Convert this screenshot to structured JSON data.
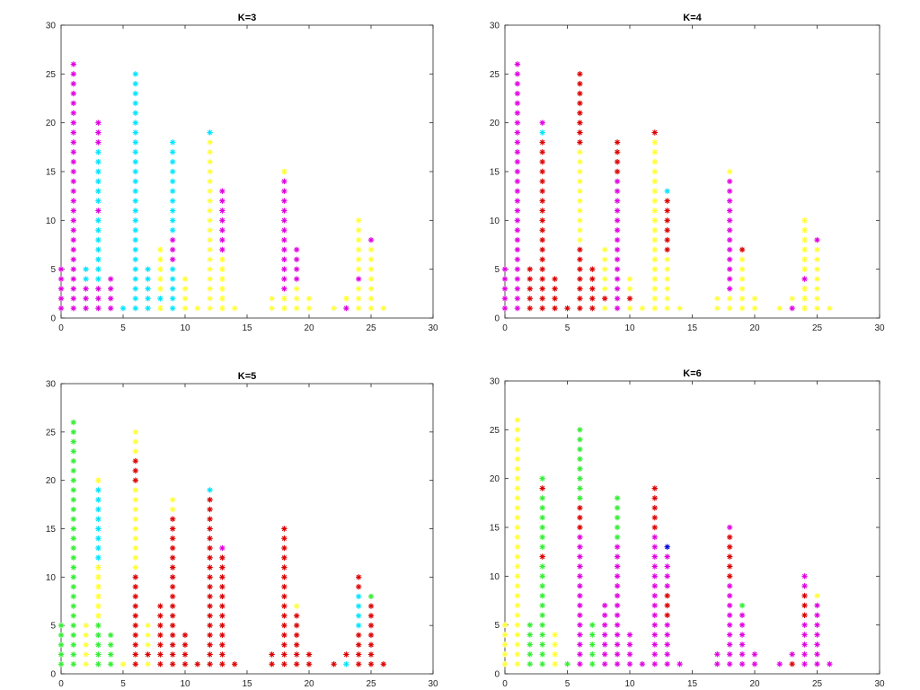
{
  "chart_data": [
    {
      "type": "scatter",
      "title": "K=3",
      "xlim": [
        0,
        30
      ],
      "ylim": [
        0,
        30
      ],
      "xticks": [
        0,
        5,
        10,
        15,
        20,
        25,
        30
      ],
      "yticks": [
        0,
        5,
        10,
        15,
        20,
        25,
        30
      ],
      "xlabel": "",
      "ylabel": "",
      "grid": false,
      "marker": "*",
      "points": [
        {
          "x": 0,
          "y": 1,
          "c": "magenta"
        },
        {
          "x": 0,
          "y": 2,
          "c": "magenta"
        },
        {
          "x": 0,
          "y": 3,
          "c": "magenta"
        },
        {
          "x": 0,
          "y": 4,
          "c": "magenta"
        },
        {
          "x": 0,
          "y": 5,
          "c": "magenta"
        },
        {
          "x": 1,
          "y": [
            1,
            26
          ],
          "c": "magenta"
        },
        {
          "x": 2,
          "y": [
            1,
            3
          ],
          "c": "magenta"
        },
        {
          "x": 2,
          "y": 4,
          "c": "cyan"
        },
        {
          "x": 2,
          "y": 5,
          "c": "cyan"
        },
        {
          "x": 3,
          "y": [
            1,
            3
          ],
          "c": "magenta"
        },
        {
          "x": 3,
          "y": [
            4,
            10
          ],
          "c": "cyan"
        },
        {
          "x": 3,
          "y": 11,
          "c": "magenta"
        },
        {
          "x": 3,
          "y": [
            12,
            17
          ],
          "c": "cyan"
        },
        {
          "x": 3,
          "y": [
            18,
            20
          ],
          "c": "magenta"
        },
        {
          "x": 4,
          "y": [
            1,
            4
          ],
          "c": "magenta"
        },
        {
          "x": 5,
          "y": 1,
          "c": "cyan"
        },
        {
          "x": 6,
          "y": [
            1,
            25
          ],
          "c": "cyan"
        },
        {
          "x": 7,
          "y": [
            1,
            5
          ],
          "c": "cyan"
        },
        {
          "x": 8,
          "y": [
            1,
            7
          ],
          "c": "yellow"
        },
        {
          "x": 8,
          "y": 2,
          "c": "cyan"
        },
        {
          "x": 9,
          "y": [
            1,
            18
          ],
          "c": "cyan"
        },
        {
          "x": 9,
          "y": [
            6,
            8
          ],
          "c": "magenta"
        },
        {
          "x": 10,
          "y": [
            1,
            4
          ],
          "c": "yellow"
        },
        {
          "x": 11,
          "y": 1,
          "c": "yellow"
        },
        {
          "x": 12,
          "y": [
            1,
            19
          ],
          "c": "yellow"
        },
        {
          "x": 12,
          "y": 19,
          "c": "cyan"
        },
        {
          "x": 13,
          "y": [
            1,
            13
          ],
          "c": "yellow"
        },
        {
          "x": 13,
          "y": [
            7,
            13
          ],
          "c": "magenta"
        },
        {
          "x": 14,
          "y": 1,
          "c": "yellow"
        },
        {
          "x": 17,
          "y": [
            1,
            2
          ],
          "c": "yellow"
        },
        {
          "x": 18,
          "y": [
            1,
            15
          ],
          "c": "yellow"
        },
        {
          "x": 18,
          "y": [
            3,
            14
          ],
          "c": "magenta"
        },
        {
          "x": 19,
          "y": [
            1,
            7
          ],
          "c": "yellow"
        },
        {
          "x": 19,
          "y": [
            4,
            7
          ],
          "c": "magenta"
        },
        {
          "x": 20,
          "y": [
            1,
            2
          ],
          "c": "yellow"
        },
        {
          "x": 22,
          "y": 1,
          "c": "yellow"
        },
        {
          "x": 23,
          "y": [
            1,
            2
          ],
          "c": "yellow"
        },
        {
          "x": 23,
          "y": 1,
          "c": "magenta"
        },
        {
          "x": 24,
          "y": [
            1,
            10
          ],
          "c": "yellow"
        },
        {
          "x": 24,
          "y": 4,
          "c": "magenta"
        },
        {
          "x": 25,
          "y": [
            1,
            8
          ],
          "c": "yellow"
        },
        {
          "x": 25,
          "y": 8,
          "c": "magenta"
        },
        {
          "x": 26,
          "y": 1,
          "c": "yellow"
        }
      ]
    },
    {
      "type": "scatter",
      "title": "K=4",
      "xlim": [
        0,
        30
      ],
      "ylim": [
        0,
        30
      ],
      "xticks": [
        0,
        5,
        10,
        15,
        20,
        25,
        30
      ],
      "yticks": [
        0,
        5,
        10,
        15,
        20,
        25,
        30
      ],
      "xlabel": "",
      "ylabel": "",
      "grid": false,
      "marker": "*",
      "points": [
        {
          "x": 0,
          "y": [
            1,
            5
          ],
          "c": "magenta"
        },
        {
          "x": 1,
          "y": [
            1,
            26
          ],
          "c": "magenta"
        },
        {
          "x": 2,
          "y": [
            1,
            5
          ],
          "c": "red"
        },
        {
          "x": 3,
          "y": [
            1,
            20
          ],
          "c": "red"
        },
        {
          "x": 3,
          "y": 19,
          "c": "cyan"
        },
        {
          "x": 3,
          "y": 20,
          "c": "magenta"
        },
        {
          "x": 4,
          "y": [
            1,
            4
          ],
          "c": "red"
        },
        {
          "x": 5,
          "y": 1,
          "c": "red"
        },
        {
          "x": 6,
          "y": [
            1,
            25
          ],
          "c": "red"
        },
        {
          "x": 6,
          "y": [
            8,
            17
          ],
          "c": "yellow"
        },
        {
          "x": 7,
          "y": [
            1,
            5
          ],
          "c": "red"
        },
        {
          "x": 8,
          "y": [
            1,
            7
          ],
          "c": "yellow"
        },
        {
          "x": 8,
          "y": 2,
          "c": "red"
        },
        {
          "x": 9,
          "y": [
            1,
            18
          ],
          "c": "magenta"
        },
        {
          "x": 9,
          "y": [
            15,
            18
          ],
          "c": "red"
        },
        {
          "x": 10,
          "y": [
            1,
            4
          ],
          "c": "yellow"
        },
        {
          "x": 10,
          "y": 2,
          "c": "red"
        },
        {
          "x": 11,
          "y": 1,
          "c": "yellow"
        },
        {
          "x": 12,
          "y": [
            1,
            19
          ],
          "c": "yellow"
        },
        {
          "x": 12,
          "y": 19,
          "c": "red"
        },
        {
          "x": 13,
          "y": [
            1,
            13
          ],
          "c": "yellow"
        },
        {
          "x": 13,
          "y": [
            7,
            12
          ],
          "c": "red"
        },
        {
          "x": 13,
          "y": 13,
          "c": "cyan"
        },
        {
          "x": 14,
          "y": 1,
          "c": "yellow"
        },
        {
          "x": 17,
          "y": [
            1,
            2
          ],
          "c": "yellow"
        },
        {
          "x": 18,
          "y": [
            1,
            15
          ],
          "c": "yellow"
        },
        {
          "x": 18,
          "y": [
            3,
            14
          ],
          "c": "magenta"
        },
        {
          "x": 19,
          "y": [
            1,
            7
          ],
          "c": "yellow"
        },
        {
          "x": 19,
          "y": 7,
          "c": "red"
        },
        {
          "x": 20,
          "y": [
            1,
            2
          ],
          "c": "yellow"
        },
        {
          "x": 22,
          "y": 1,
          "c": "yellow"
        },
        {
          "x": 23,
          "y": [
            1,
            2
          ],
          "c": "yellow"
        },
        {
          "x": 23,
          "y": 1,
          "c": "magenta"
        },
        {
          "x": 24,
          "y": [
            1,
            10
          ],
          "c": "yellow"
        },
        {
          "x": 24,
          "y": 4,
          "c": "magenta"
        },
        {
          "x": 25,
          "y": [
            1,
            8
          ],
          "c": "yellow"
        },
        {
          "x": 25,
          "y": 8,
          "c": "magenta"
        },
        {
          "x": 26,
          "y": 1,
          "c": "yellow"
        }
      ]
    },
    {
      "type": "scatter",
      "title": "K=5",
      "xlim": [
        0,
        30
      ],
      "ylim": [
        0,
        30
      ],
      "xticks": [
        0,
        5,
        10,
        15,
        20,
        25,
        30
      ],
      "yticks": [
        0,
        5,
        10,
        15,
        20,
        25,
        30
      ],
      "xlabel": "",
      "ylabel": "",
      "grid": false,
      "marker": "*",
      "points": [
        {
          "x": 0,
          "y": [
            1,
            5
          ],
          "c": "green"
        },
        {
          "x": 1,
          "y": [
            1,
            26
          ],
          "c": "green"
        },
        {
          "x": 2,
          "y": [
            1,
            5
          ],
          "c": "yellow"
        },
        {
          "x": 3,
          "y": [
            1,
            20
          ],
          "c": "yellow"
        },
        {
          "x": 3,
          "y": [
            12,
            19
          ],
          "c": "cyan"
        },
        {
          "x": 3,
          "y": [
            1,
            5
          ],
          "c": "green"
        },
        {
          "x": 4,
          "y": [
            1,
            4
          ],
          "c": "green"
        },
        {
          "x": 5,
          "y": 1,
          "c": "yellow"
        },
        {
          "x": 6,
          "y": [
            1,
            25
          ],
          "c": "yellow"
        },
        {
          "x": 6,
          "y": [
            1,
            10
          ],
          "c": "red"
        },
        {
          "x": 6,
          "y": [
            20,
            22
          ],
          "c": "red"
        },
        {
          "x": 7,
          "y": [
            1,
            5
          ],
          "c": "yellow"
        },
        {
          "x": 7,
          "y": 2,
          "c": "red"
        },
        {
          "x": 8,
          "y": [
            1,
            7
          ],
          "c": "red"
        },
        {
          "x": 9,
          "y": [
            1,
            18
          ],
          "c": "red"
        },
        {
          "x": 9,
          "y": [
            17,
            18
          ],
          "c": "yellow"
        },
        {
          "x": 10,
          "y": [
            1,
            4
          ],
          "c": "red"
        },
        {
          "x": 11,
          "y": 1,
          "c": "red"
        },
        {
          "x": 12,
          "y": [
            1,
            19
          ],
          "c": "red"
        },
        {
          "x": 12,
          "y": 19,
          "c": "cyan"
        },
        {
          "x": 13,
          "y": [
            1,
            13
          ],
          "c": "red"
        },
        {
          "x": 13,
          "y": 13,
          "c": "magenta"
        },
        {
          "x": 14,
          "y": 1,
          "c": "red"
        },
        {
          "x": 17,
          "y": [
            1,
            2
          ],
          "c": "red"
        },
        {
          "x": 18,
          "y": [
            1,
            15
          ],
          "c": "red"
        },
        {
          "x": 19,
          "y": [
            1,
            7
          ],
          "c": "red"
        },
        {
          "x": 19,
          "y": 7,
          "c": "yellow"
        },
        {
          "x": 20,
          "y": [
            1,
            2
          ],
          "c": "red"
        },
        {
          "x": 22,
          "y": 1,
          "c": "red"
        },
        {
          "x": 23,
          "y": [
            1,
            2
          ],
          "c": "red"
        },
        {
          "x": 23,
          "y": 1,
          "c": "cyan"
        },
        {
          "x": 24,
          "y": [
            1,
            10
          ],
          "c": "red"
        },
        {
          "x": 24,
          "y": [
            5,
            8
          ],
          "c": "cyan"
        },
        {
          "x": 25,
          "y": [
            1,
            8
          ],
          "c": "red"
        },
        {
          "x": 25,
          "y": 8,
          "c": "green"
        },
        {
          "x": 26,
          "y": 1,
          "c": "red"
        }
      ]
    },
    {
      "type": "scatter",
      "title": "K=6",
      "xlim": [
        0,
        30
      ],
      "ylim": [
        0,
        30
      ],
      "xticks": [
        0,
        5,
        10,
        15,
        20,
        25,
        30
      ],
      "yticks": [
        0,
        5,
        10,
        15,
        20,
        25,
        30
      ],
      "xlabel": "",
      "ylabel": "",
      "grid": false,
      "marker": "*",
      "points": [
        {
          "x": 0,
          "y": [
            1,
            5
          ],
          "c": "yellow"
        },
        {
          "x": 1,
          "y": [
            1,
            26
          ],
          "c": "yellow"
        },
        {
          "x": 2,
          "y": [
            1,
            5
          ],
          "c": "green"
        },
        {
          "x": 3,
          "y": [
            1,
            20
          ],
          "c": "green"
        },
        {
          "x": 3,
          "y": 19,
          "c": "red"
        },
        {
          "x": 3,
          "y": 12,
          "c": "red"
        },
        {
          "x": 4,
          "y": [
            1,
            4
          ],
          "c": "yellow"
        },
        {
          "x": 5,
          "y": 1,
          "c": "green"
        },
        {
          "x": 6,
          "y": [
            1,
            25
          ],
          "c": "magenta"
        },
        {
          "x": 6,
          "y": [
            15,
            17
          ],
          "c": "red"
        },
        {
          "x": 6,
          "y": [
            18,
            25
          ],
          "c": "green"
        },
        {
          "x": 7,
          "y": [
            1,
            5
          ],
          "c": "green"
        },
        {
          "x": 8,
          "y": [
            1,
            7
          ],
          "c": "magenta"
        },
        {
          "x": 9,
          "y": [
            1,
            18
          ],
          "c": "magenta"
        },
        {
          "x": 9,
          "y": [
            14,
            18
          ],
          "c": "green"
        },
        {
          "x": 10,
          "y": [
            1,
            4
          ],
          "c": "magenta"
        },
        {
          "x": 11,
          "y": 1,
          "c": "magenta"
        },
        {
          "x": 12,
          "y": [
            1,
            19
          ],
          "c": "magenta"
        },
        {
          "x": 12,
          "y": [
            15,
            19
          ],
          "c": "red"
        },
        {
          "x": 13,
          "y": [
            1,
            13
          ],
          "c": "magenta"
        },
        {
          "x": 13,
          "y": 13,
          "c": "blue"
        },
        {
          "x": 13,
          "y": [
            6,
            8
          ],
          "c": "red"
        },
        {
          "x": 14,
          "y": 1,
          "c": "magenta"
        },
        {
          "x": 17,
          "y": [
            1,
            2
          ],
          "c": "magenta"
        },
        {
          "x": 18,
          "y": [
            1,
            15
          ],
          "c": "magenta"
        },
        {
          "x": 18,
          "y": [
            10,
            14
          ],
          "c": "red"
        },
        {
          "x": 19,
          "y": [
            1,
            7
          ],
          "c": "magenta"
        },
        {
          "x": 19,
          "y": 7,
          "c": "green"
        },
        {
          "x": 20,
          "y": [
            1,
            2
          ],
          "c": "magenta"
        },
        {
          "x": 22,
          "y": 1,
          "c": "magenta"
        },
        {
          "x": 23,
          "y": [
            1,
            2
          ],
          "c": "magenta"
        },
        {
          "x": 23,
          "y": 1,
          "c": "red"
        },
        {
          "x": 24,
          "y": [
            1,
            10
          ],
          "c": "magenta"
        },
        {
          "x": 24,
          "y": [
            6,
            8
          ],
          "c": "red"
        },
        {
          "x": 25,
          "y": [
            1,
            8
          ],
          "c": "magenta"
        },
        {
          "x": 25,
          "y": 8,
          "c": "yellow"
        },
        {
          "x": 26,
          "y": 1,
          "c": "magenta"
        }
      ]
    }
  ],
  "colors": {
    "magenta": "#e000e0",
    "cyan": "#00e5ff",
    "yellow": "#ffff33",
    "red": "#dd0000",
    "green": "#33ee33",
    "blue": "#0000dd",
    "axis": "#262626"
  }
}
